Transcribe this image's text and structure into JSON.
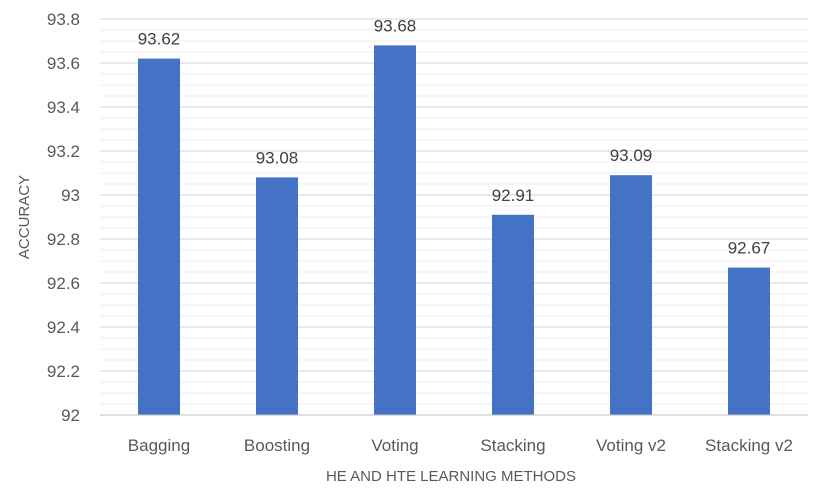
{
  "chart_data": {
    "type": "bar",
    "categories": [
      "Bagging",
      "Boosting",
      "Voting",
      "Stacking",
      "Voting v2",
      "Stacking v2"
    ],
    "values": [
      93.62,
      93.08,
      93.68,
      92.91,
      93.09,
      92.67
    ],
    "data_labels": [
      "93.62",
      "93.08",
      "93.68",
      "92.91",
      "93.09",
      "92.67"
    ],
    "xlabel": "HE AND HTE LEARNING METHODS",
    "ylabel": "ACCURACY",
    "ylim": [
      92,
      93.8
    ],
    "yticks": [
      92,
      92.2,
      92.4,
      92.6,
      92.8,
      93,
      93.2,
      93.4,
      93.6,
      93.8
    ],
    "ytick_labels": [
      "92",
      "92.2",
      "92.4",
      "92.6",
      "92.8",
      "93",
      "93.2",
      "93.4",
      "93.6",
      "93.8"
    ],
    "minor_grid_step": 0.05,
    "grid": true,
    "legend": "none",
    "bar_color": "#4472c4",
    "grid_color": "#d9d9d9"
  }
}
